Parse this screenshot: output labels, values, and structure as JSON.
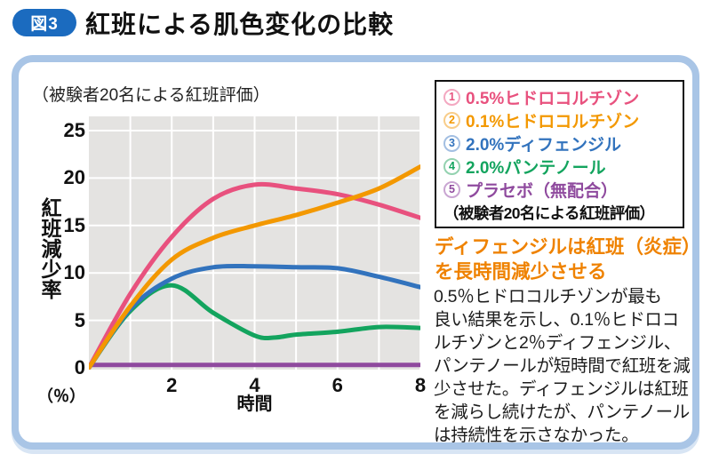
{
  "figure": {
    "badge": "図3",
    "title": "紅班による肌色変化の比較"
  },
  "panel": {
    "note": "（被験者20名による紅班評価）"
  },
  "chart_data": {
    "type": "line",
    "title": "（被験者20名による紅班評価）",
    "xlabel": "時間",
    "ylabel": "紅班減少率",
    "y_unit": "（％）",
    "xlim": [
      0,
      8
    ],
    "ylim": [
      0,
      26.5
    ],
    "x_ticks": [
      2,
      4,
      6,
      8
    ],
    "y_ticks": [
      25,
      20,
      15,
      10,
      5,
      0
    ],
    "x_grid": [
      1,
      2,
      3,
      4,
      5,
      6,
      7,
      8
    ],
    "y_grid": [
      5,
      10,
      15,
      20,
      25
    ],
    "grid_on": true,
    "plot_bg": "#e4e3e1",
    "grid_color": "#ffffff",
    "legend_position": "right-box",
    "draw_order": [
      4,
      3,
      2,
      0,
      1
    ],
    "series": [
      {
        "name": "0.5%ヒドロコルチゾン",
        "color": "#e8517e",
        "x": [
          0,
          1,
          2,
          3,
          4,
          5,
          6,
          7,
          8
        ],
        "values": [
          0,
          7.8,
          13.8,
          17.8,
          19.3,
          18.9,
          18.3,
          17.2,
          15.8
        ]
      },
      {
        "name": "0.1%ヒドロコルチゾン",
        "color": "#f39800",
        "x": [
          0,
          1,
          2,
          3,
          4,
          5,
          6,
          7,
          8
        ],
        "values": [
          0,
          6.5,
          11.4,
          13.7,
          15.0,
          16.1,
          17.4,
          18.9,
          21.2
        ]
      },
      {
        "name": "2.0%ディフェンジル",
        "color": "#3273bd",
        "x": [
          0,
          1,
          2,
          3,
          4,
          5,
          6,
          7,
          8
        ],
        "values": [
          0,
          6.2,
          9.4,
          10.6,
          10.7,
          10.6,
          10.5,
          9.6,
          8.5
        ]
      },
      {
        "name": "2.0%パンテノール",
        "color": "#13a45e",
        "x": [
          0,
          1,
          2,
          3,
          4,
          4.5,
          5,
          6,
          7,
          8
        ],
        "values": [
          0,
          6.0,
          8.7,
          5.8,
          3.4,
          3.2,
          3.5,
          3.8,
          4.3,
          4.2
        ]
      },
      {
        "name": "プラセボ（無配合）",
        "color": "#8f4a9e",
        "x": [
          0,
          2,
          4,
          6,
          8
        ],
        "values": [
          0.3,
          0.3,
          0.3,
          0.3,
          0.3
        ]
      }
    ]
  },
  "legend": {
    "items": [
      {
        "num": "1",
        "label": "0.5%ヒドロコルチゾン",
        "color": "#e8517e",
        "ring": "#f3a8c1"
      },
      {
        "num": "2",
        "label": "0.1%ヒドロコルチゾン",
        "color": "#f39800",
        "ring": "#f8cd8a"
      },
      {
        "num": "3",
        "label": "2.0%ディフェンジル",
        "color": "#3273bd",
        "ring": "#a3bfe2"
      },
      {
        "num": "4",
        "label": "2.0%パンテノール",
        "color": "#13a45e",
        "ring": "#94d2b0"
      },
      {
        "num": "5",
        "label": "プラセボ（無配合）",
        "color": "#8f4a9e",
        "ring": "#c9a5d2"
      }
    ],
    "note": "（被験者20名による紅班評価）"
  },
  "summary": {
    "heading": "ディフェンジルは紅班（炎症）\nを長時間減少させる",
    "body": "0.5％ヒドロコルチゾンが最も\n良い結果を示し、0.1％ヒドロコ\nルチゾンと2％ディフェンジル、\nパンテノールが短時間で紅班を減\n少させた。ディフェンジルは紅班\nを減らし続けたが、パンテノール\nは持続性を示さなかった。"
  }
}
